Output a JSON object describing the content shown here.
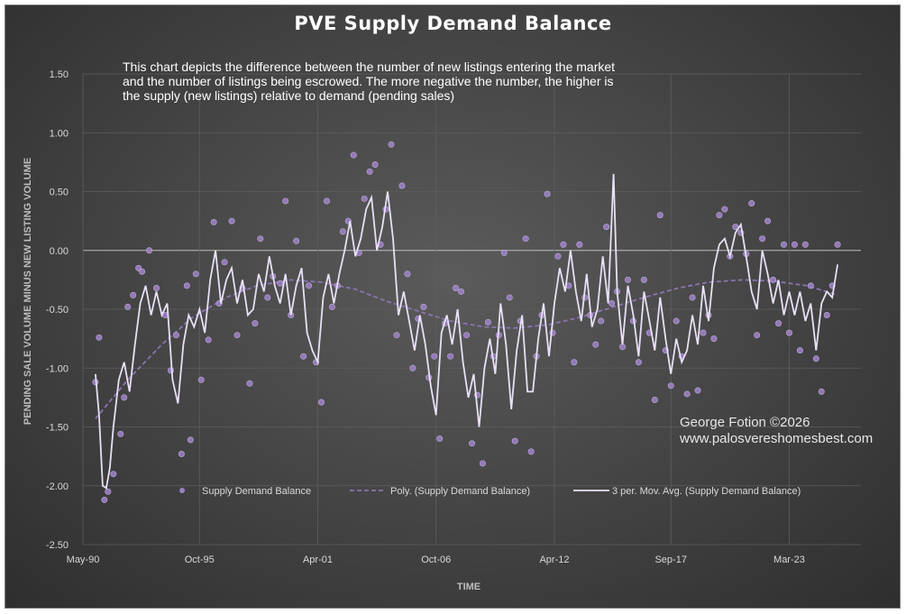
{
  "chart_data": {
    "type": "scatter",
    "title": "PVE Supply Demand Balance",
    "annotation": "This chart depicts the difference between the number of new listings entering the market and the number of listings being escrowed.  The more negative the number, the higher is the supply (new listings) relative to demand (pending sales)",
    "credit": [
      "George Fotion ©2026",
      "www.palosvereshomesbest.com"
    ],
    "xlabel": "TIME",
    "ylabel": "PENDING SALE VOLUME MINUS NEW LISTING VOLUME",
    "xlim": [
      "1990-05",
      "2026-07"
    ],
    "ylim": [
      -2.5,
      1.5
    ],
    "x_ticks": [
      "May-90",
      "Oct-95",
      "Apr-01",
      "Oct-06",
      "Apr-12",
      "Sep-17",
      "Mar-23"
    ],
    "y_ticks": [
      "1.50",
      "1.00",
      "0.50",
      "0.00",
      "-0.50",
      "-1.00",
      "-1.50",
      "-2.00",
      "-2.50"
    ],
    "grid": true,
    "legend_position": "bottom-inside",
    "series": [
      {
        "name": "Supply Demand Balance",
        "style": "markers",
        "color": "#9b7fc4"
      },
      {
        "name": "Poly. (Supply Demand Balance)",
        "style": "dashed",
        "color": "#8a74b0"
      },
      {
        "name": "3 per. Mov. Avg. (Supply Demand Balance)",
        "style": "line",
        "color": "#e8e0f5"
      }
    ],
    "points": [
      [
        "1990-12",
        -1.12
      ],
      [
        "1991-02",
        -0.74
      ],
      [
        "1991-05",
        -2.12
      ],
      [
        "1991-07",
        -2.05
      ],
      [
        "1991-10",
        -1.9
      ],
      [
        "1992-02",
        -1.56
      ],
      [
        "1992-04",
        -1.25
      ],
      [
        "1992-06",
        -0.48
      ],
      [
        "1992-09",
        -0.38
      ],
      [
        "1992-12",
        -0.15
      ],
      [
        "1993-02",
        -0.18
      ],
      [
        "1993-06",
        0.0
      ],
      [
        "1993-10",
        -0.32
      ],
      [
        "1994-03",
        -0.55
      ],
      [
        "1994-06",
        -1.02
      ],
      [
        "1994-09",
        -0.72
      ],
      [
        "1994-12",
        -1.73
      ],
      [
        "1995-03",
        -0.3
      ],
      [
        "1995-05",
        -1.61
      ],
      [
        "1995-08",
        -0.2
      ],
      [
        "1995-11",
        -1.1
      ],
      [
        "1996-03",
        -0.76
      ],
      [
        "1996-06",
        0.24
      ],
      [
        "1996-09",
        -0.45
      ],
      [
        "1996-12",
        -0.1
      ],
      [
        "1997-04",
        0.25
      ],
      [
        "1997-07",
        -0.72
      ],
      [
        "1997-10",
        -0.32
      ],
      [
        "1998-02",
        -1.13
      ],
      [
        "1998-05",
        -0.62
      ],
      [
        "1998-08",
        0.1
      ],
      [
        "1998-12",
        -0.4
      ],
      [
        "1999-03",
        -0.22
      ],
      [
        "1999-07",
        -0.28
      ],
      [
        "1999-10",
        0.42
      ],
      [
        "2000-01",
        -0.55
      ],
      [
        "2000-04",
        0.08
      ],
      [
        "2000-08",
        -0.9
      ],
      [
        "2000-11",
        -0.3
      ],
      [
        "2001-03",
        -0.95
      ],
      [
        "2001-06",
        -1.29
      ],
      [
        "2001-09",
        0.42
      ],
      [
        "2001-12",
        -0.48
      ],
      [
        "2002-03",
        -0.3
      ],
      [
        "2002-06",
        0.16
      ],
      [
        "2002-09",
        0.25
      ],
      [
        "2002-12",
        0.81
      ],
      [
        "2003-03",
        -0.02
      ],
      [
        "2003-06",
        0.44
      ],
      [
        "2003-09",
        0.67
      ],
      [
        "2003-12",
        0.73
      ],
      [
        "2004-03",
        0.05
      ],
      [
        "2004-06",
        0.35
      ],
      [
        "2004-09",
        0.9
      ],
      [
        "2004-12",
        -0.72
      ],
      [
        "2005-03",
        0.55
      ],
      [
        "2005-06",
        -0.2
      ],
      [
        "2005-09",
        -1.0
      ],
      [
        "2005-12",
        -0.58
      ],
      [
        "2006-03",
        -0.48
      ],
      [
        "2006-06",
        -1.08
      ],
      [
        "2006-09",
        -0.9
      ],
      [
        "2006-12",
        -1.6
      ],
      [
        "2007-03",
        -0.62
      ],
      [
        "2007-06",
        -0.9
      ],
      [
        "2007-09",
        -0.32
      ],
      [
        "2007-12",
        -0.35
      ],
      [
        "2008-03",
        -0.72
      ],
      [
        "2008-06",
        -1.64
      ],
      [
        "2008-09",
        -1.23
      ],
      [
        "2008-12",
        -1.81
      ],
      [
        "2009-03",
        -0.61
      ],
      [
        "2009-06",
        -0.9
      ],
      [
        "2009-09",
        -0.72
      ],
      [
        "2009-12",
        -0.02
      ],
      [
        "2010-03",
        -0.4
      ],
      [
        "2010-06",
        -1.62
      ],
      [
        "2010-09",
        -0.6
      ],
      [
        "2010-12",
        0.1
      ],
      [
        "2011-03",
        -1.71
      ],
      [
        "2011-06",
        -0.9
      ],
      [
        "2011-09",
        -0.55
      ],
      [
        "2011-12",
        0.48
      ],
      [
        "2012-03",
        -0.7
      ],
      [
        "2012-06",
        -0.05
      ],
      [
        "2012-09",
        0.05
      ],
      [
        "2012-12",
        -0.3
      ],
      [
        "2013-03",
        -0.95
      ],
      [
        "2013-06",
        0.05
      ],
      [
        "2013-09",
        -0.4
      ],
      [
        "2013-12",
        -0.55
      ],
      [
        "2014-03",
        -0.8
      ],
      [
        "2014-06",
        -0.6
      ],
      [
        "2014-09",
        0.2
      ],
      [
        "2014-12",
        -0.45
      ],
      [
        "2015-03",
        -0.35
      ],
      [
        "2015-06",
        -0.82
      ],
      [
        "2015-09",
        -0.25
      ],
      [
        "2015-12",
        -0.6
      ],
      [
        "2016-03",
        -0.95
      ],
      [
        "2016-06",
        -0.25
      ],
      [
        "2016-09",
        -0.7
      ],
      [
        "2016-12",
        -1.27
      ],
      [
        "2017-03",
        0.3
      ],
      [
        "2017-06",
        -0.85
      ],
      [
        "2017-09",
        -1.15
      ],
      [
        "2017-12",
        -0.6
      ],
      [
        "2018-03",
        -0.9
      ],
      [
        "2018-06",
        -1.22
      ],
      [
        "2018-09",
        -0.4
      ],
      [
        "2018-12",
        -1.19
      ],
      [
        "2019-03",
        -0.7
      ],
      [
        "2019-06",
        -0.55
      ],
      [
        "2019-09",
        -0.75
      ],
      [
        "2019-12",
        0.3
      ],
      [
        "2020-03",
        0.35
      ],
      [
        "2020-06",
        -0.05
      ],
      [
        "2020-09",
        0.2
      ],
      [
        "2020-12",
        0.15
      ],
      [
        "2021-03",
        -0.03
      ],
      [
        "2021-06",
        0.4
      ],
      [
        "2021-09",
        -0.72
      ],
      [
        "2021-12",
        0.1
      ],
      [
        "2022-03",
        0.25
      ],
      [
        "2022-06",
        -0.25
      ],
      [
        "2022-09",
        -0.62
      ],
      [
        "2022-12",
        0.05
      ],
      [
        "2023-03",
        -0.7
      ],
      [
        "2023-06",
        0.05
      ],
      [
        "2023-09",
        -0.85
      ],
      [
        "2023-12",
        0.05
      ],
      [
        "2024-03",
        -0.3
      ],
      [
        "2024-06",
        -0.92
      ],
      [
        "2024-09",
        -1.2
      ],
      [
        "2024-12",
        -0.55
      ],
      [
        "2025-03",
        -0.3
      ],
      [
        "2025-06",
        0.05
      ]
    ],
    "moving_average": [
      [
        "1990-12",
        -1.05
      ],
      [
        "1991-02",
        -1.4
      ],
      [
        "1991-04",
        -2.0
      ],
      [
        "1991-06",
        -2.02
      ],
      [
        "1991-08",
        -1.85
      ],
      [
        "1991-10",
        -1.5
      ],
      [
        "1992-01",
        -1.1
      ],
      [
        "1992-04",
        -0.95
      ],
      [
        "1992-07",
        -1.2
      ],
      [
        "1992-10",
        -0.8
      ],
      [
        "1993-01",
        -0.45
      ],
      [
        "1993-04",
        -0.3
      ],
      [
        "1993-07",
        -0.55
      ],
      [
        "1993-10",
        -0.35
      ],
      [
        "1994-01",
        -0.55
      ],
      [
        "1994-04",
        -0.45
      ],
      [
        "1994-07",
        -1.1
      ],
      [
        "1994-10",
        -1.3
      ],
      [
        "1995-01",
        -0.8
      ],
      [
        "1995-04",
        -0.55
      ],
      [
        "1995-07",
        -0.65
      ],
      [
        "1995-10",
        -0.5
      ],
      [
        "1996-01",
        -0.7
      ],
      [
        "1996-04",
        -0.25
      ],
      [
        "1996-07",
        0.0
      ],
      [
        "1996-10",
        -0.45
      ],
      [
        "1997-01",
        -0.25
      ],
      [
        "1997-04",
        -0.15
      ],
      [
        "1997-07",
        -0.45
      ],
      [
        "1997-10",
        -0.25
      ],
      [
        "1998-01",
        -0.55
      ],
      [
        "1998-04",
        -0.5
      ],
      [
        "1998-07",
        -0.2
      ],
      [
        "1998-10",
        -0.35
      ],
      [
        "1999-01",
        -0.05
      ],
      [
        "1999-04",
        -0.3
      ],
      [
        "1999-07",
        -0.45
      ],
      [
        "1999-10",
        -0.2
      ],
      [
        "2000-01",
        -0.55
      ],
      [
        "2000-04",
        -0.3
      ],
      [
        "2000-07",
        -0.15
      ],
      [
        "2000-10",
        -0.7
      ],
      [
        "2001-01",
        -0.85
      ],
      [
        "2001-04",
        -0.95
      ],
      [
        "2001-07",
        -0.4
      ],
      [
        "2001-10",
        -0.2
      ],
      [
        "2002-01",
        -0.45
      ],
      [
        "2002-04",
        -0.2
      ],
      [
        "2002-07",
        0.0
      ],
      [
        "2002-10",
        0.25
      ],
      [
        "2003-01",
        -0.05
      ],
      [
        "2003-04",
        0.1
      ],
      [
        "2003-07",
        0.35
      ],
      [
        "2003-10",
        0.45
      ],
      [
        "2004-01",
        0.0
      ],
      [
        "2004-04",
        0.2
      ],
      [
        "2004-07",
        0.5
      ],
      [
        "2004-10",
        0.1
      ],
      [
        "2005-01",
        -0.55
      ],
      [
        "2005-04",
        -0.35
      ],
      [
        "2005-07",
        -0.6
      ],
      [
        "2005-10",
        -0.85
      ],
      [
        "2006-01",
        -0.55
      ],
      [
        "2006-04",
        -0.8
      ],
      [
        "2006-07",
        -1.15
      ],
      [
        "2006-10",
        -1.4
      ],
      [
        "2007-01",
        -0.7
      ],
      [
        "2007-04",
        -0.55
      ],
      [
        "2007-07",
        -0.8
      ],
      [
        "2007-10",
        -0.5
      ],
      [
        "2008-01",
        -0.95
      ],
      [
        "2008-04",
        -1.25
      ],
      [
        "2008-07",
        -1.05
      ],
      [
        "2008-10",
        -1.5
      ],
      [
        "2009-01",
        -1.0
      ],
      [
        "2009-04",
        -0.75
      ],
      [
        "2009-07",
        -1.05
      ],
      [
        "2009-10",
        -0.45
      ],
      [
        "2010-01",
        -0.8
      ],
      [
        "2010-04",
        -1.35
      ],
      [
        "2010-07",
        -0.85
      ],
      [
        "2010-10",
        -0.55
      ],
      [
        "2011-01",
        -1.2
      ],
      [
        "2011-04",
        -1.2
      ],
      [
        "2011-07",
        -0.75
      ],
      [
        "2011-10",
        -0.45
      ],
      [
        "2012-01",
        -0.9
      ],
      [
        "2012-04",
        -0.45
      ],
      [
        "2012-07",
        -0.15
      ],
      [
        "2012-10",
        -0.35
      ],
      [
        "2013-01",
        0.0
      ],
      [
        "2013-04",
        -0.35
      ],
      [
        "2013-07",
        -0.6
      ],
      [
        "2013-10",
        -0.2
      ],
      [
        "2014-01",
        -0.65
      ],
      [
        "2014-04",
        -0.5
      ],
      [
        "2014-07",
        -0.05
      ],
      [
        "2014-10",
        -0.45
      ],
      [
        "2015-01",
        0.65
      ],
      [
        "2015-03",
        -0.35
      ],
      [
        "2015-06",
        -0.8
      ],
      [
        "2015-09",
        -0.3
      ],
      [
        "2015-12",
        -0.55
      ],
      [
        "2016-03",
        -0.9
      ],
      [
        "2016-06",
        -0.35
      ],
      [
        "2016-09",
        -0.6
      ],
      [
        "2016-12",
        -0.85
      ],
      [
        "2017-03",
        -0.4
      ],
      [
        "2017-06",
        -0.75
      ],
      [
        "2017-09",
        -1.05
      ],
      [
        "2017-12",
        -0.75
      ],
      [
        "2018-03",
        -0.95
      ],
      [
        "2018-06",
        -0.85
      ],
      [
        "2018-09",
        -0.55
      ],
      [
        "2018-12",
        -0.8
      ],
      [
        "2019-03",
        -0.3
      ],
      [
        "2019-06",
        -0.6
      ],
      [
        "2019-09",
        -0.15
      ],
      [
        "2019-12",
        0.05
      ],
      [
        "2020-03",
        0.1
      ],
      [
        "2020-06",
        -0.05
      ],
      [
        "2020-09",
        0.15
      ],
      [
        "2020-12",
        0.22
      ],
      [
        "2021-03",
        -0.05
      ],
      [
        "2021-06",
        -0.35
      ],
      [
        "2021-09",
        -0.5
      ],
      [
        "2021-12",
        0.0
      ],
      [
        "2022-03",
        -0.2
      ],
      [
        "2022-06",
        -0.45
      ],
      [
        "2022-09",
        -0.25
      ],
      [
        "2022-12",
        -0.55
      ],
      [
        "2023-03",
        -0.35
      ],
      [
        "2023-06",
        -0.55
      ],
      [
        "2023-09",
        -0.35
      ],
      [
        "2023-12",
        -0.6
      ],
      [
        "2024-03",
        -0.45
      ],
      [
        "2024-06",
        -0.85
      ],
      [
        "2024-09",
        -0.45
      ],
      [
        "2024-12",
        -0.35
      ],
      [
        "2025-03",
        -0.4
      ],
      [
        "2025-06",
        -0.12
      ]
    ],
    "polynomial_trend": [
      [
        "1990-12",
        -1.43
      ],
      [
        "1992-06",
        -1.1
      ],
      [
        "1994-01",
        -0.8
      ],
      [
        "1995-06",
        -0.57
      ],
      [
        "1997-01",
        -0.4
      ],
      [
        "1998-06",
        -0.3
      ],
      [
        "2000-01",
        -0.25
      ],
      [
        "2001-06",
        -0.27
      ],
      [
        "2003-01",
        -0.33
      ],
      [
        "2004-06",
        -0.43
      ],
      [
        "2006-01",
        -0.52
      ],
      [
        "2007-06",
        -0.6
      ],
      [
        "2009-01",
        -0.65
      ],
      [
        "2010-06",
        -0.66
      ],
      [
        "2012-01",
        -0.63
      ],
      [
        "2013-06",
        -0.57
      ],
      [
        "2015-01",
        -0.48
      ],
      [
        "2016-06",
        -0.4
      ],
      [
        "2018-01",
        -0.32
      ],
      [
        "2019-06",
        -0.27
      ],
      [
        "2021-01",
        -0.25
      ],
      [
        "2022-06",
        -0.26
      ],
      [
        "2024-01",
        -0.3
      ],
      [
        "2025-06",
        -0.38
      ]
    ]
  }
}
